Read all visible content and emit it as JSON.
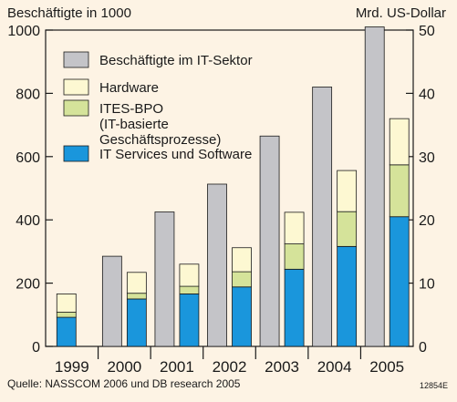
{
  "header": {
    "left_axis_title": "Beschäftigte in 1000",
    "right_axis_title": "Mrd. US-Dollar"
  },
  "footer": {
    "source": "Quelle: NASSCOM 2006 und DB research 2005",
    "code": "12854E"
  },
  "colors": {
    "background": "#fdf3e4",
    "employees": "#c4c4c8",
    "hardware": "#fdf8d2",
    "ites_bpo": "#d5e39a",
    "it_services": "#1a96dc",
    "stroke": "#1a1a1a"
  },
  "chart_data": {
    "type": "bar",
    "categories": [
      "1999",
      "2000",
      "2001",
      "2002",
      "2003",
      "2004",
      "2005"
    ],
    "left_axis": {
      "ylim": [
        0,
        1000
      ],
      "ticks": [
        "0",
        "200",
        "400",
        "600",
        "800",
        "1000"
      ]
    },
    "right_axis": {
      "ylim": [
        0,
        50
      ],
      "ticks": [
        "0",
        "10",
        "20",
        "30",
        "40",
        "50"
      ]
    },
    "employees": {
      "name": "Beschäftigte im IT-Sektor",
      "axis": "left",
      "values": [
        null,
        285,
        425,
        513,
        665,
        820,
        1010
      ]
    },
    "revenue_stack": {
      "axis": "right",
      "series": [
        {
          "name": "IT Services und Software",
          "values": [
            4.6,
            7.5,
            8.3,
            9.4,
            12.2,
            15.8,
            20.5
          ]
        },
        {
          "name": "ITES-BPO\n(IT-basierte\nGeschäftsprozesse)",
          "values": [
            0.8,
            0.9,
            1.2,
            2.4,
            4.0,
            5.5,
            8.2
          ]
        },
        {
          "name": "Hardware",
          "values": [
            2.9,
            3.3,
            3.5,
            3.8,
            5.0,
            6.5,
            7.3
          ]
        }
      ]
    },
    "legend": [
      {
        "label": "Beschäftigte im IT-Sektor",
        "color": "#c4c4c8"
      },
      {
        "label": "Hardware",
        "color": "#fdf8d2"
      },
      {
        "label": "ITES-BPO\n(IT-basierte\nGeschäftsprozesse)",
        "color": "#d5e39a"
      },
      {
        "label": "IT Services und Software",
        "color": "#1a96dc"
      }
    ]
  }
}
